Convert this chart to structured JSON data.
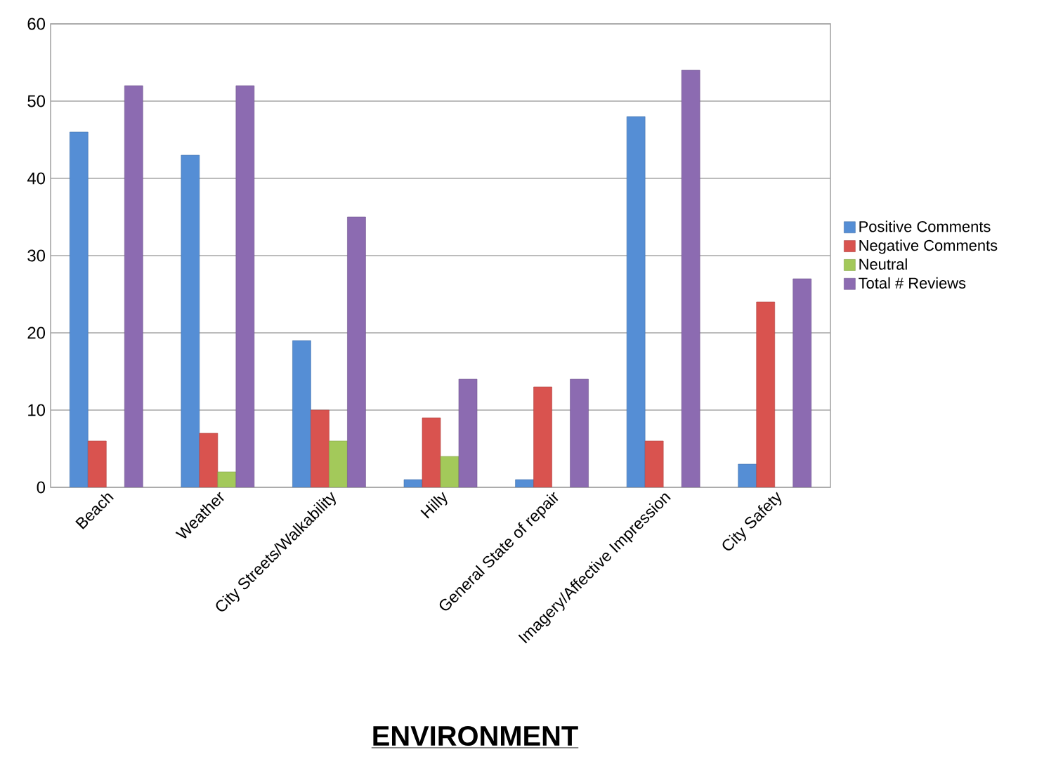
{
  "chart_data": {
    "type": "bar",
    "title": "ENVIRONMENT",
    "categories": [
      "Beach",
      "Weather",
      "City Streets/Walkability",
      "Hilly",
      "General State of repair",
      "Imagery/Affective Impression",
      "City Safety"
    ],
    "series": [
      {
        "name": "Positive Comments",
        "color": "#558ed5",
        "values": [
          46,
          43,
          19,
          1,
          1,
          48,
          3
        ]
      },
      {
        "name": "Negative Comments",
        "color": "#d9534f",
        "values": [
          6,
          7,
          10,
          9,
          13,
          6,
          24
        ]
      },
      {
        "name": "Neutral",
        "color": "#a3c95a",
        "values": [
          null,
          2,
          6,
          4,
          null,
          null,
          null
        ]
      },
      {
        "name": "Total # Reviews",
        "color": "#8c6bb1",
        "values": [
          52,
          52,
          35,
          14,
          14,
          54,
          27
        ]
      }
    ],
    "ylim": [
      0,
      60
    ],
    "yticks": [
      0,
      10,
      20,
      30,
      40,
      50,
      60
    ],
    "grid": "y",
    "legend": "right"
  }
}
